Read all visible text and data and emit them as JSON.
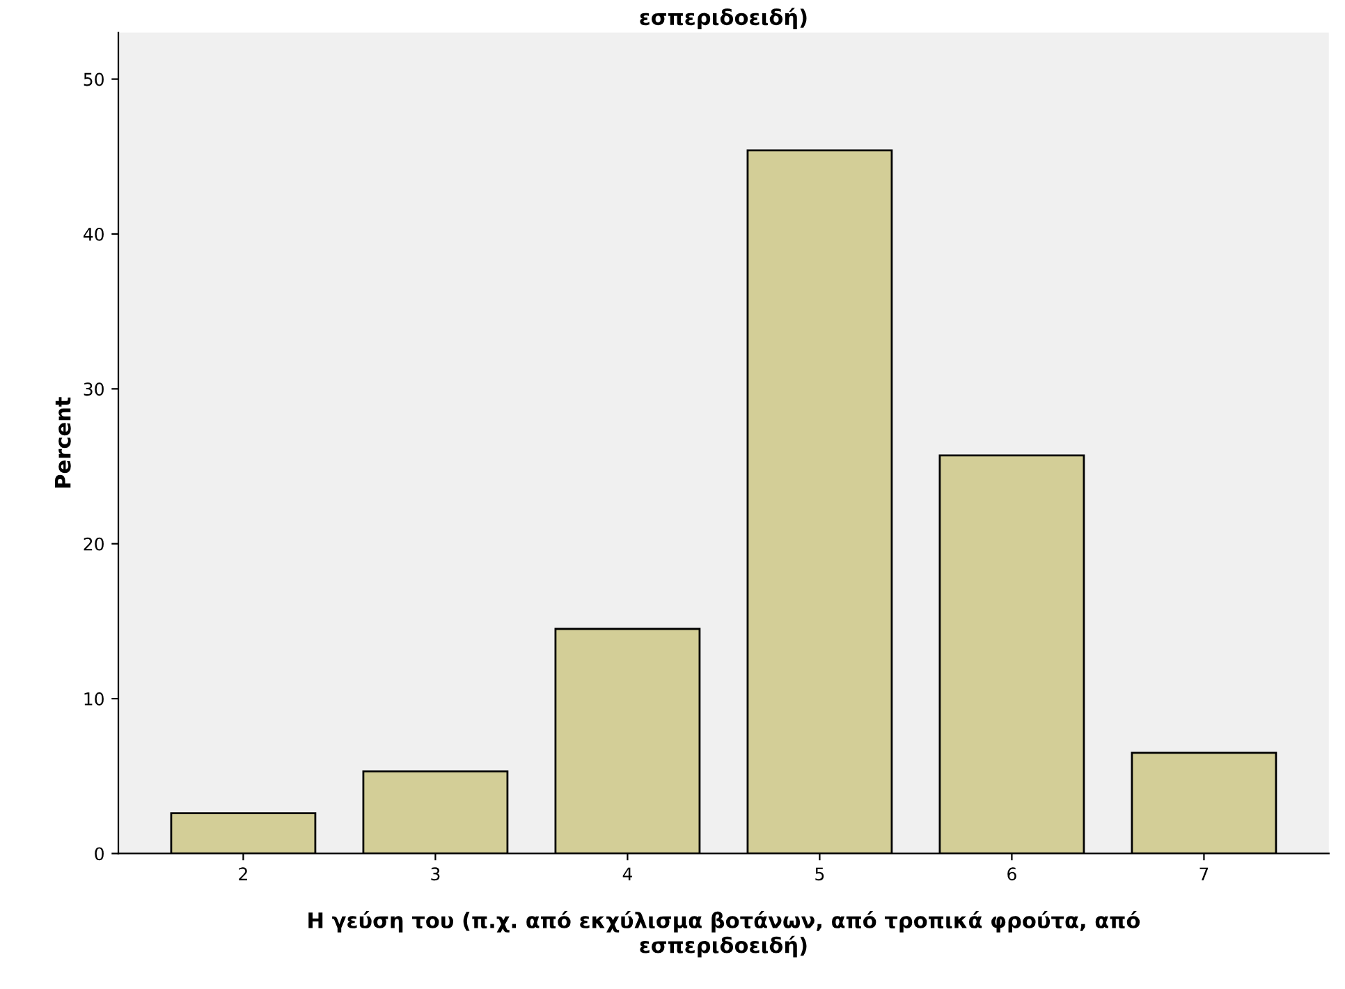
{
  "chart_data": {
    "type": "bar",
    "title": "εσπεριδοειδή)",
    "xlabel": "Η γεύση του (π.χ. από εκχύλισμα βοτάνων, από τροπικά φρούτα, από\nεσπεριδοειδή)",
    "ylabel": "Percent",
    "categories": [
      "2",
      "3",
      "4",
      "5",
      "6",
      "7"
    ],
    "values": [
      2.6,
      5.3,
      14.5,
      45.4,
      25.7,
      6.5
    ],
    "color": "#d3ce97",
    "ylim": [
      0,
      53
    ],
    "yticks": [
      0,
      10,
      20,
      30,
      40,
      50
    ],
    "grid": false,
    "legend": false
  }
}
